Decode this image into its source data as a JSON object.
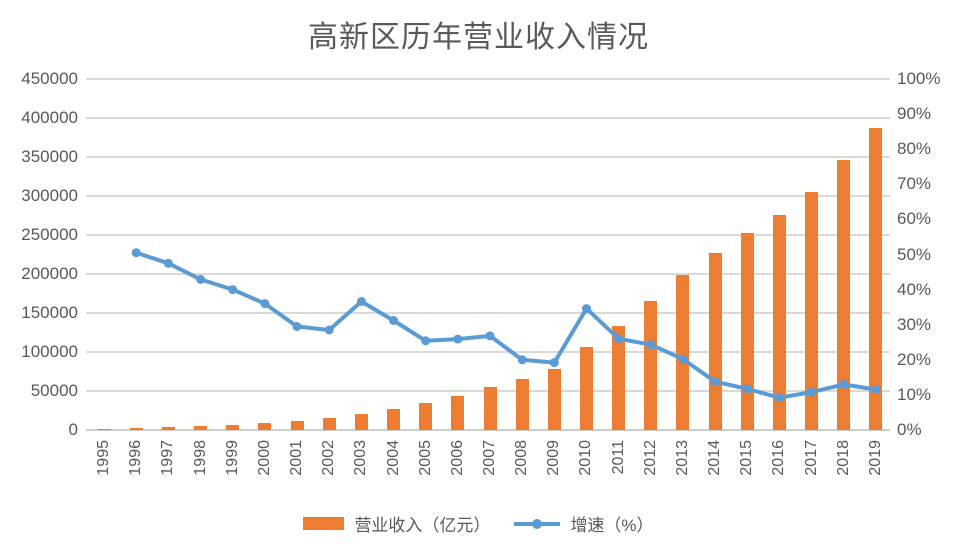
{
  "title": "高新区历年营业收入情况",
  "legend": {
    "revenue_label": "营业收入（亿元）",
    "growth_label": "增速（%）"
  },
  "colors": {
    "bar": "#ED7D31",
    "line": "#5B9BD5",
    "grid": "#D9D9D9",
    "text": "#595959"
  },
  "chart_data": {
    "type": "combo",
    "title": "高新区历年营业收入情况",
    "categories": [
      "1995",
      "1996",
      "1997",
      "1998",
      "1999",
      "2000",
      "2001",
      "2002",
      "2003",
      "2004",
      "2005",
      "2006",
      "2007",
      "2008",
      "2009",
      "2010",
      "2011",
      "2012",
      "2013",
      "2014",
      "2015",
      "2016",
      "2017",
      "2018",
      "2019"
    ],
    "series": [
      {
        "name": "营业收入（亿元）",
        "type": "bar",
        "yaxis": "left",
        "color": "#ED7D31",
        "values": [
          1500,
          2300,
          3400,
          4800,
          6800,
          9200,
          11900,
          15300,
          20900,
          27500,
          34400,
          43300,
          54900,
          66000,
          78700,
          105900,
          133400,
          165900,
          199000,
          226400,
          252800,
          276000,
          305700,
          346600,
          386900
        ]
      },
      {
        "name": "增速（%）",
        "type": "line",
        "yaxis": "right",
        "color": "#5B9BD5",
        "values": [
          null,
          50.5,
          47.5,
          42.9,
          40.0,
          36.0,
          29.5,
          28.5,
          36.6,
          31.2,
          25.4,
          25.9,
          26.8,
          20.0,
          19.2,
          34.6,
          26.0,
          24.3,
          20.2,
          13.8,
          11.7,
          9.2,
          10.8,
          13.0,
          11.5
        ]
      }
    ],
    "left_axis": {
      "min": 0,
      "max": 450000,
      "step": 50000,
      "ticks": [
        "0",
        "50000",
        "100000",
        "150000",
        "200000",
        "250000",
        "300000",
        "350000",
        "400000",
        "450000"
      ]
    },
    "right_axis": {
      "min": 0,
      "max": 100,
      "step": 10,
      "ticks": [
        "0%",
        "10%",
        "20%",
        "30%",
        "40%",
        "50%",
        "60%",
        "70%",
        "80%",
        "90%",
        "100%"
      ]
    },
    "grid": true,
    "legend_position": "bottom"
  }
}
